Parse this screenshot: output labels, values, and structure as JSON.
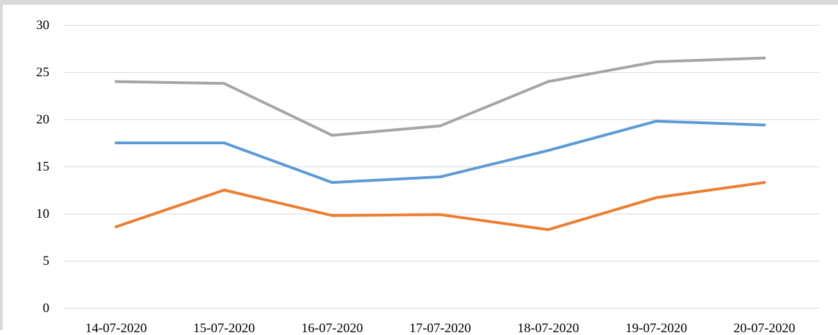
{
  "chart_data": {
    "type": "line",
    "title": "",
    "xlabel": "",
    "ylabel": "",
    "categories": [
      "14-07-2020",
      "15-07-2020",
      "16-07-2020",
      "17-07-2020",
      "18-07-2020",
      "19-07-2020",
      "20-07-2020"
    ],
    "ylim": [
      0,
      30
    ],
    "yticks": [
      0,
      5,
      10,
      15,
      20,
      25,
      30
    ],
    "grid": true,
    "legend": "none",
    "series": [
      {
        "color": "#5b9bd5",
        "values": [
          17.5,
          17.5,
          13.3,
          13.9,
          16.7,
          19.8,
          19.4
        ]
      },
      {
        "color": "#ed7d31",
        "values": [
          8.6,
          12.5,
          9.8,
          9.9,
          8.3,
          11.7,
          13.3
        ]
      },
      {
        "color": "#a5a5a5",
        "values": [
          24.0,
          23.8,
          18.3,
          19.3,
          24.0,
          26.1,
          26.5
        ]
      }
    ]
  }
}
